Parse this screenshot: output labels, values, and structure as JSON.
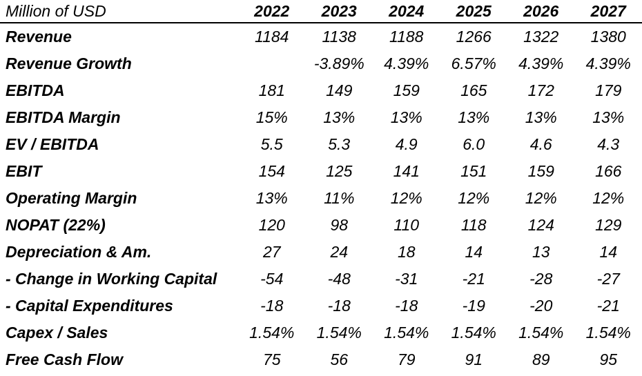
{
  "table": {
    "unit_label": "Million of USD",
    "years": [
      "2022",
      "2023",
      "2024",
      "2025",
      "2026",
      "2027"
    ],
    "rows": [
      {
        "label": "Revenue",
        "values": [
          "1184",
          "1138",
          "1188",
          "1266",
          "1322",
          "1380"
        ]
      },
      {
        "label": "Revenue Growth",
        "values": [
          "",
          "-3.89%",
          "4.39%",
          "6.57%",
          "4.39%",
          "4.39%"
        ]
      },
      {
        "label": "EBITDA",
        "values": [
          "181",
          "149",
          "159",
          "165",
          "172",
          "179"
        ]
      },
      {
        "label": "EBITDA Margin",
        "values": [
          "15%",
          "13%",
          "13%",
          "13%",
          "13%",
          "13%"
        ]
      },
      {
        "label": "EV / EBITDA",
        "values": [
          "5.5",
          "5.3",
          "4.9",
          "6.0",
          "4.6",
          "4.3"
        ]
      },
      {
        "label": "EBIT",
        "values": [
          "154",
          "125",
          "141",
          "151",
          "159",
          "166"
        ]
      },
      {
        "label": "Operating Margin",
        "values": [
          "13%",
          "11%",
          "12%",
          "12%",
          "12%",
          "12%"
        ]
      },
      {
        "label": "NOPAT (22%)",
        "values": [
          "120",
          "98",
          "110",
          "118",
          "124",
          "129"
        ]
      },
      {
        "label": "Depreciation & Am.",
        "values": [
          "27",
          "24",
          "18",
          "14",
          "13",
          "14"
        ]
      },
      {
        "label": "- Change in Working Capital",
        "values": [
          "-54",
          "-48",
          "-31",
          "-21",
          "-28",
          "-27"
        ]
      },
      {
        "label": "- Capital Expenditures",
        "values": [
          "-18",
          "-18",
          "-18",
          "-19",
          "-20",
          "-21"
        ]
      },
      {
        "label": "Capex / Sales",
        "values": [
          "1.54%",
          "1.54%",
          "1.54%",
          "1.54%",
          "1.54%",
          "1.54%"
        ]
      },
      {
        "label": "Free Cash Flow",
        "values": [
          "75",
          "56",
          "79",
          "91",
          "89",
          "95"
        ]
      }
    ]
  }
}
